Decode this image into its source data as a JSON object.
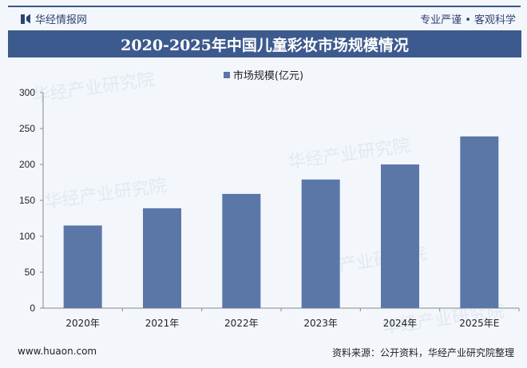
{
  "header": {
    "brand": "华经情报网",
    "slogan": "专业严谨 • 客观科学"
  },
  "watermark": "华经产业研究院",
  "footer": {
    "website": "www.huaon.com",
    "source": "资料来源：公开资料，华经产业研究院整理"
  },
  "colors": {
    "bar": "#5a77a8",
    "banner": "#3d5a8e"
  },
  "chart_data": {
    "type": "bar",
    "title": "2020-2025年中国儿童彩妆市场规模情况",
    "categories": [
      "2020年",
      "2021年",
      "2022年",
      "2023年",
      "2024年",
      "2025年E"
    ],
    "series": [
      {
        "name": "市场规模(亿元)",
        "values": [
          115,
          139,
          159,
          179,
          200,
          239
        ]
      }
    ],
    "ylim": [
      0,
      300
    ],
    "yticks": [
      0,
      50,
      100,
      150,
      200,
      250,
      300
    ],
    "grid": false,
    "legend": "top-center"
  }
}
